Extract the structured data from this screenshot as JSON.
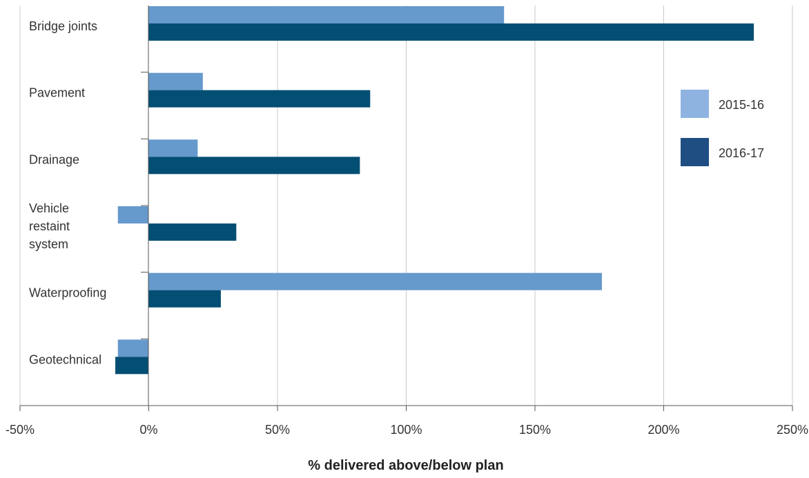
{
  "chart_data": {
    "type": "bar",
    "orientation": "horizontal",
    "categories": [
      "Bridge joints",
      "Pavement",
      "Drainage",
      "Vehicle restaint system",
      "Waterproofing",
      "Geotechnical"
    ],
    "category_label_lines": [
      [
        "Bridge joints"
      ],
      [
        "Pavement"
      ],
      [
        "Drainage"
      ],
      [
        "Vehicle",
        "restaint",
        "system"
      ],
      [
        "Waterproofing"
      ],
      [
        "Geotechnical"
      ]
    ],
    "series": [
      {
        "name": "2015-16",
        "bar_color": "#6699cc",
        "legend_color": "#8fb3e0",
        "values": [
          138,
          21,
          19,
          -12,
          176,
          -12
        ]
      },
      {
        "name": "2016-17",
        "bar_color": "#034e73",
        "legend_color": "#1f4e82",
        "values": [
          235,
          86,
          82,
          34,
          28,
          -13
        ]
      }
    ],
    "xlabel": "% delivered above/below plan",
    "xlim": [
      -50,
      250
    ],
    "xticks": [
      -50,
      0,
      50,
      100,
      150,
      200,
      250
    ],
    "xtick_labels": [
      "-50%",
      "0%",
      "50%",
      "100%",
      "150%",
      "200%",
      "250%"
    ],
    "grid": true,
    "legend_position": "right"
  }
}
